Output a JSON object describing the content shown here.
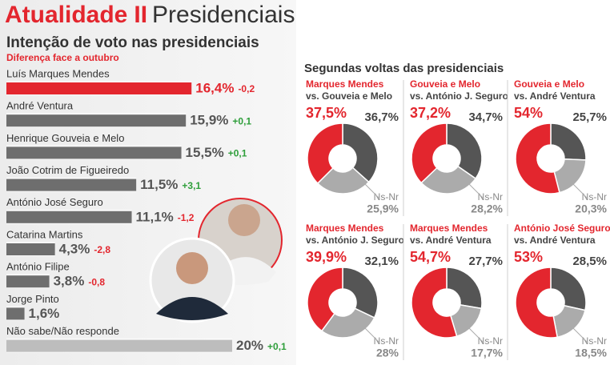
{
  "header": {
    "section": "Atualidade",
    "separator": "II",
    "topic": "Presidenciais"
  },
  "runoff_title": "Segundas voltas das presidenciais",
  "chart_data": [
    {
      "type": "bar",
      "orientation": "horizontal",
      "title": "Intenção de voto nas presidenciais",
      "subtitle": "Diferença face a outubro",
      "categories": [
        "Luís Marques Mendes",
        "André Ventura",
        "Henrique Gouveia e Melo",
        "João Cotrim de Figueiredo",
        "António José Seguro",
        "Catarina Martins",
        "António Filipe",
        "Jorge Pinto",
        "Não sabe/Não responde"
      ],
      "values": [
        16.4,
        15.9,
        15.5,
        11.5,
        11.1,
        4.3,
        3.8,
        1.6,
        20
      ],
      "value_labels": [
        "16,4%",
        "15,9%",
        "15,5%",
        "11,5%",
        "11,1%",
        "4,3%",
        "3,8%",
        "1,6%",
        "20%"
      ],
      "changes": [
        -0.2,
        0.1,
        0.1,
        3.1,
        -1.2,
        -2.8,
        -0.8,
        null,
        0.1
      ],
      "change_labels": [
        "-0,2",
        "+0,1",
        "+0,1",
        "+3,1",
        "-1,2",
        "-2,8",
        "-0,8",
        null,
        "+0,1"
      ],
      "colors": [
        "#e3262e",
        "#6e6e6e",
        "#6e6e6e",
        "#6e6e6e",
        "#6e6e6e",
        "#6e6e6e",
        "#6e6e6e",
        "#6e6e6e",
        "#bdbdbd"
      ],
      "xlim": [
        0,
        20
      ]
    },
    {
      "type": "donut",
      "title": "Marques Mendes",
      "subtitle": "vs. Gouveia e Melo",
      "ns_label": "Ns-Nr",
      "values": [
        37.5,
        36.7,
        25.9
      ],
      "value_labels": [
        "37,5%",
        "36,7%",
        "25,9%"
      ],
      "colors": [
        "#e3262e",
        "#555555",
        "#ababab"
      ]
    },
    {
      "type": "donut",
      "title": "Gouveia e Melo",
      "subtitle": "vs. António J. Seguro",
      "ns_label": "Ns-Nr",
      "values": [
        37.2,
        34.7,
        28.2
      ],
      "value_labels": [
        "37,2%",
        "34,7%",
        "28,2%"
      ],
      "colors": [
        "#e3262e",
        "#555555",
        "#ababab"
      ]
    },
    {
      "type": "donut",
      "title": "Gouveia e Melo",
      "subtitle": "vs. André Ventura",
      "ns_label": "Ns-Nr",
      "values": [
        54,
        25.7,
        20.3
      ],
      "value_labels": [
        "54%",
        "25,7%",
        "20,3%"
      ],
      "colors": [
        "#e3262e",
        "#555555",
        "#ababab"
      ]
    },
    {
      "type": "donut",
      "title": "Marques Mendes",
      "subtitle": "vs. António J. Seguro",
      "ns_label": "Ns-Nr",
      "values": [
        39.9,
        32.1,
        28
      ],
      "value_labels": [
        "39,9%",
        "32,1%",
        "28%"
      ],
      "colors": [
        "#e3262e",
        "#555555",
        "#ababab"
      ]
    },
    {
      "type": "donut",
      "title": "Marques Mendes",
      "subtitle": "vs. André Ventura",
      "ns_label": "Ns-Nr",
      "values": [
        54.7,
        27.7,
        17.7
      ],
      "value_labels": [
        "54,7%",
        "27,7%",
        "17,7%"
      ],
      "colors": [
        "#e3262e",
        "#555555",
        "#ababab"
      ]
    },
    {
      "type": "donut",
      "title": "António José Seguro",
      "subtitle": "vs. André Ventura",
      "ns_label": "Ns-Nr",
      "values": [
        53,
        28.5,
        18.5
      ],
      "value_labels": [
        "53%",
        "28,5%",
        "18,5%"
      ],
      "colors": [
        "#e3262e",
        "#555555",
        "#ababab"
      ]
    }
  ]
}
